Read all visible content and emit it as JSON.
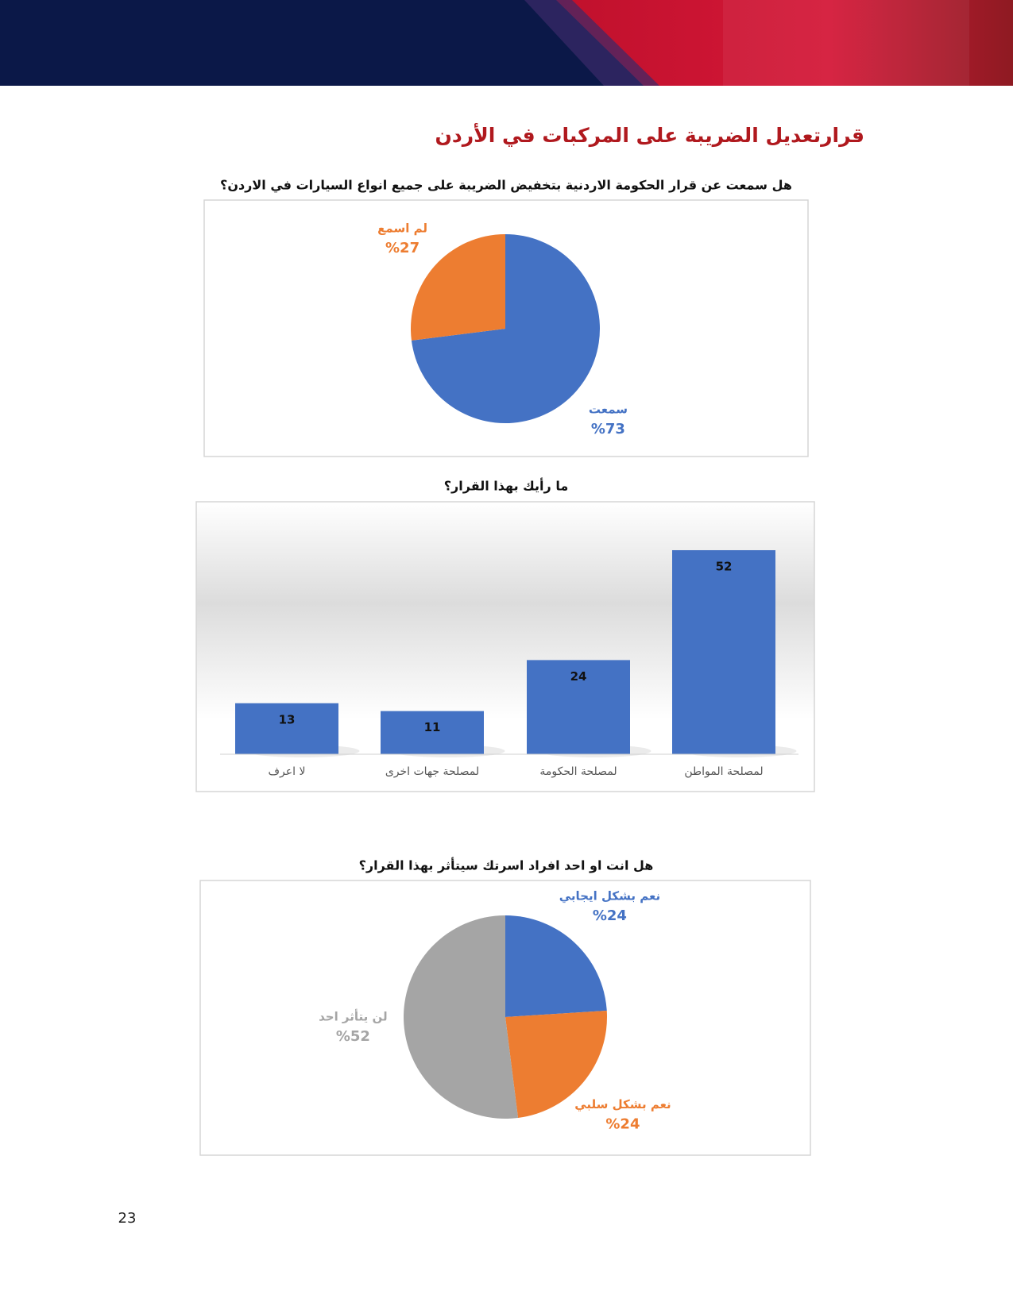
{
  "page": {
    "title": "قرارتعديل الضريبة على المركبات في الأردن",
    "page_number": "23"
  },
  "chart_data": [
    {
      "type": "pie",
      "title": "هل سمعت عن قرار الحكومة الاردنية بتخفيض الضريبة على جميع انواع السيارات في الاردن؟",
      "categories": [
        "سمعت",
        "لم اسمع"
      ],
      "values": [
        73,
        27
      ],
      "value_labels": [
        "%73",
        "%27"
      ],
      "colors": [
        "#4472c4",
        "#ed7d31"
      ]
    },
    {
      "type": "bar",
      "title": "ما رأيك بهذا القرار؟",
      "categories": [
        "لمصلحة المواطن",
        "لمصلحة الحكومة",
        "لمصلحة جهات اخرى",
        "لا اعرف"
      ],
      "values": [
        52,
        24,
        11,
        13
      ],
      "color": "#4472c4"
    },
    {
      "type": "pie",
      "title": "هل انت او احد افراد اسرتك سيتأثر بهذا القرار؟",
      "categories": [
        "نعم بشكل ايجابي",
        "نعم بشكل سلبي",
        "لن يتأثر احد"
      ],
      "values": [
        24,
        24,
        52
      ],
      "value_labels": [
        "%24",
        "%24",
        "%52"
      ],
      "colors": [
        "#4472c4",
        "#ed7d31",
        "#a5a5a5"
      ]
    }
  ]
}
